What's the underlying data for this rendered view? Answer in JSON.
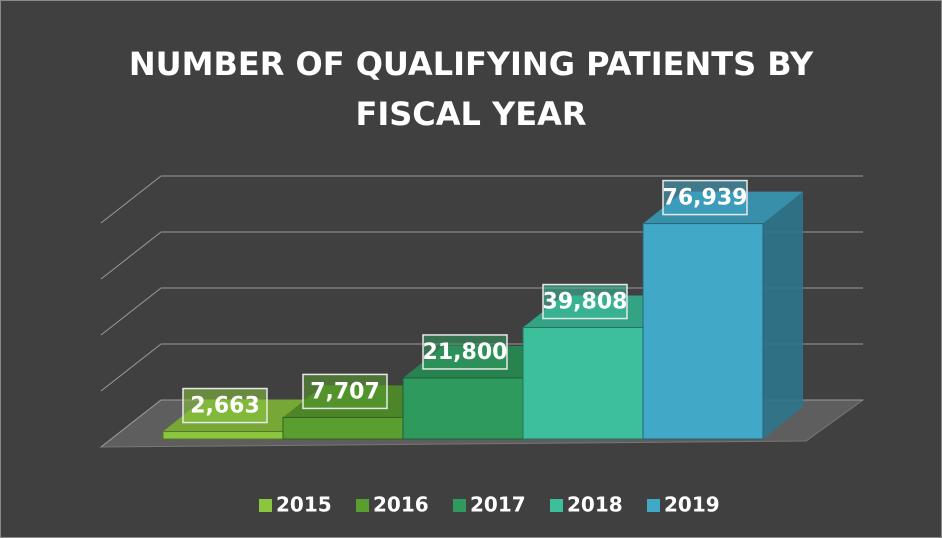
{
  "chart_data": {
    "type": "bar3d",
    "title": "NUMBER OF QUALIFYING PATIENTS BY FISCAL YEAR",
    "series": [
      {
        "name": "2015",
        "color": "#8cc63f",
        "values": [
          2663
        ],
        "value_labels": [
          "2,663"
        ]
      },
      {
        "name": "2016",
        "color": "#5a9e2f",
        "values": [
          7707
        ],
        "value_labels": [
          "7,707"
        ]
      },
      {
        "name": "2017",
        "color": "#2f9a5e",
        "values": [
          21800
        ],
        "value_labels": [
          "21,800"
        ]
      },
      {
        "name": "2018",
        "color": "#3dbf9c",
        "values": [
          39808
        ],
        "value_labels": [
          "39,808"
        ]
      },
      {
        "name": "2019",
        "color": "#41a8c8",
        "values": [
          76939
        ],
        "value_labels": [
          "76,939"
        ]
      }
    ],
    "ylim": [
      0,
      80000
    ],
    "yticks": [
      0,
      20000,
      40000,
      60000,
      80000
    ],
    "grid": true,
    "legend": "bottom"
  }
}
